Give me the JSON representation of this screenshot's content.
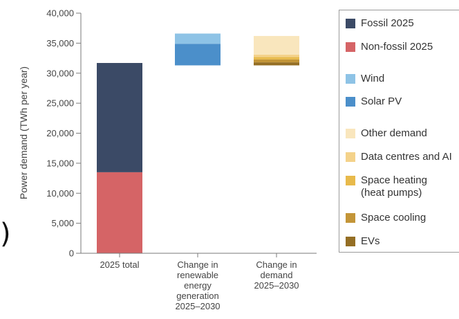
{
  "chart_data": {
    "type": "bar",
    "stacked": "floating",
    "xlabel": "",
    "ylabel": "Power demand (TWh per year)",
    "ylim": [
      0,
      40000
    ],
    "yticks": [
      0,
      5000,
      10000,
      15000,
      20000,
      25000,
      30000,
      35000,
      40000
    ],
    "ytick_labels": [
      "0",
      "5,000",
      "10,000",
      "15,000",
      "20,000",
      "25,000",
      "30,000",
      "35,000",
      "40,000"
    ],
    "grid": false,
    "legend_position": "right",
    "categories": [
      "2025 total",
      "Change in\nrenewable\nenergy\ngeneration\n2025–2030",
      "Change in\ndemand\n2025–2030"
    ],
    "bars": [
      {
        "category": "2025 total",
        "base": 0,
        "segments": [
          {
            "series": "Non-fossil 2025",
            "value": 13500
          },
          {
            "series": "Fossil 2025",
            "value": 18200
          }
        ]
      },
      {
        "category": "Change in renewable energy generation 2025–2030",
        "base": 31300,
        "segments": [
          {
            "series": "Solar PV",
            "value": 3600
          },
          {
            "series": "Wind",
            "value": 1700
          }
        ]
      },
      {
        "category": "Change in demand 2025–2030",
        "base": 31300,
        "segments": [
          {
            "series": "EVs",
            "value": 500
          },
          {
            "series": "Space cooling",
            "value": 500
          },
          {
            "series": "Space heating\n(heat pumps)",
            "value": 400
          },
          {
            "series": "Data centres and AI",
            "value": 400
          },
          {
            "series": "Other demand",
            "value": 3100
          }
        ]
      }
    ],
    "series": [
      {
        "name": "Fossil 2025",
        "color": "#3b4a66"
      },
      {
        "name": "Non-fossil 2025",
        "color": "#d56466"
      },
      {
        "name": "Wind",
        "color": "#8ec3e6"
      },
      {
        "name": "Solar PV",
        "color": "#4b8fca"
      },
      {
        "name": "Other demand",
        "color": "#f9e6bd"
      },
      {
        "name": "Data centres and AI",
        "color": "#f4d28a"
      },
      {
        "name": "Space heating\n(heat pumps)",
        "color": "#e8ba4b"
      },
      {
        "name": "Space cooling",
        "color": "#c39538"
      },
      {
        "name": "EVs",
        "color": "#946e24"
      }
    ]
  },
  "legend": {
    "items": [
      {
        "label": "Fossil 2025",
        "color": "#3b4a66"
      },
      {
        "label": "Non-fossil 2025",
        "color": "#d56466"
      },
      {
        "label": "Wind",
        "color": "#8ec3e6"
      },
      {
        "label": "Solar PV",
        "color": "#4b8fca"
      },
      {
        "label": "Other demand",
        "color": "#f9e6bd"
      },
      {
        "label": "Data centres and AI",
        "color": "#f4d28a"
      },
      {
        "label": "Space heating\n(heat pumps)",
        "color": "#e8ba4b"
      },
      {
        "label": "Space cooling",
        "color": "#c39538"
      },
      {
        "label": "EVs",
        "color": "#946e24"
      }
    ]
  },
  "page_fragment": ")"
}
